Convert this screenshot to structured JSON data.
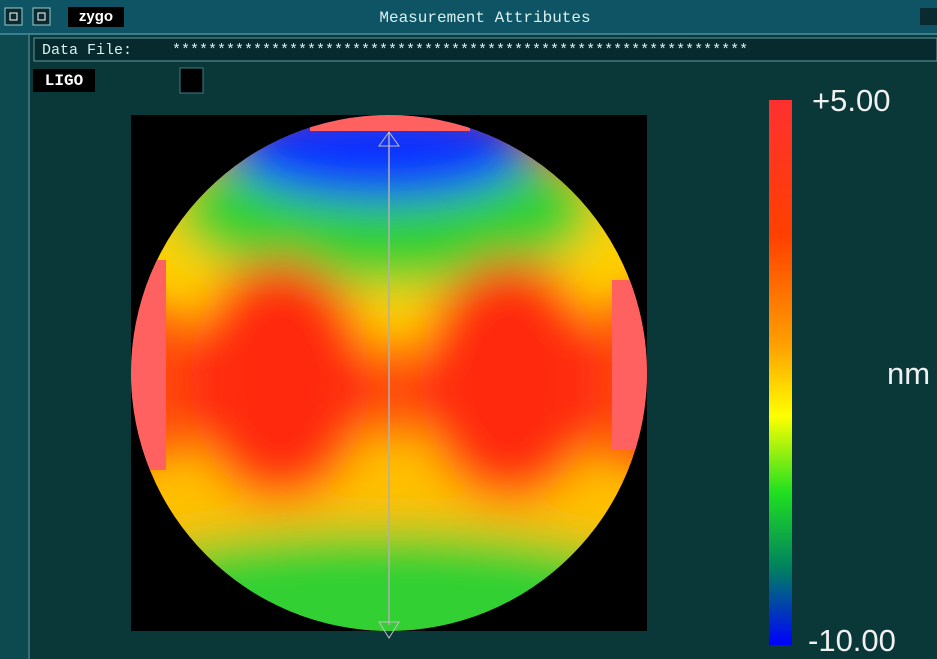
{
  "window": {
    "title": "Measurement Attributes",
    "logo": "zygo"
  },
  "data_file": {
    "label": "Data File:",
    "value": "****************************************************************"
  },
  "panel": {
    "label": "LIGO"
  },
  "colorbar": {
    "max_label": "+5.00",
    "min_label": "-10.00",
    "unit": "nm"
  }
}
